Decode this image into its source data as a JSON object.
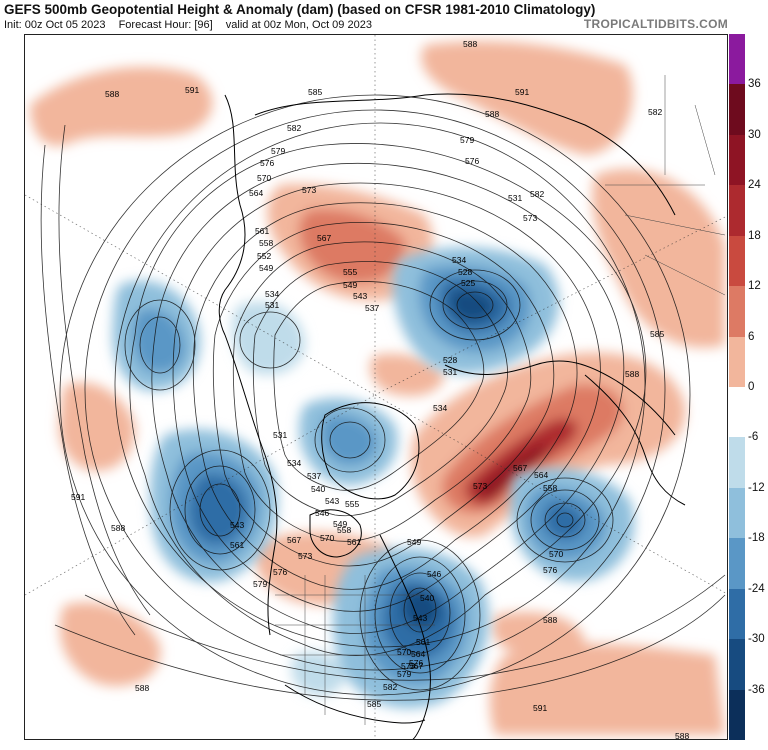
{
  "header": {
    "title": "GEFS 500mb Geopotential Height & Anomaly (dam) (based on CFSR 1981-2010 Climatology)",
    "init": "Init: 00z Oct 05 2023",
    "forecast_hour": "Forecast Hour: [96]",
    "valid": "valid at 00z Mon, Oct 09 2023",
    "site": "TROPICALTIDBITS.COM"
  },
  "colorbar": {
    "labels": [
      "36",
      "30",
      "24",
      "18",
      "12",
      "6",
      "0",
      "-6",
      "-12",
      "-18",
      "-24",
      "-30",
      "-36"
    ],
    "colors": [
      "#8b1a9e",
      "#6e0b1e",
      "#8e1424",
      "#ad2a2f",
      "#c94a3f",
      "#dd7a64",
      "#f2b69c",
      "#ffffff",
      "#bfdcea",
      "#8fbfdc",
      "#5a97c6",
      "#2f6da6",
      "#174b80",
      "#0c2f5a"
    ]
  },
  "map": {
    "contour_labels": [
      {
        "text": "588",
        "id": "c588-nw"
      },
      {
        "text": "591",
        "id": "c591-nw"
      },
      {
        "text": "588",
        "id": "c588-n"
      },
      {
        "text": "591",
        "id": "c591-ne"
      },
      {
        "text": "588",
        "id": "c588-ne"
      },
      {
        "text": "582",
        "id": "c582-ne"
      },
      {
        "text": "585",
        "id": "c585-n"
      },
      {
        "text": "582",
        "id": "c582-n"
      },
      {
        "text": "579",
        "id": "c579-n"
      },
      {
        "text": "576",
        "id": "c576-n"
      },
      {
        "text": "579",
        "id": "c579-ne"
      },
      {
        "text": "576",
        "id": "c576-ne"
      },
      {
        "text": "570",
        "id": "c570-n"
      },
      {
        "text": "564",
        "id": "c564-n"
      },
      {
        "text": "573",
        "id": "c573-n"
      },
      {
        "text": "567",
        "id": "c567-n"
      },
      {
        "text": "561",
        "id": "c561-w"
      },
      {
        "text": "558",
        "id": "c558-w"
      },
      {
        "text": "552",
        "id": "c552-w"
      },
      {
        "text": "549",
        "id": "c549-w"
      },
      {
        "text": "555",
        "id": "c555-c"
      },
      {
        "text": "549",
        "id": "c549-c"
      },
      {
        "text": "543",
        "id": "c543-c"
      },
      {
        "text": "537",
        "id": "c537-c"
      },
      {
        "text": "534",
        "id": "c534-w"
      },
      {
        "text": "531",
        "id": "c531-w"
      },
      {
        "text": "534",
        "id": "c534-e"
      },
      {
        "text": "528",
        "id": "c528-e"
      },
      {
        "text": "525",
        "id": "c525-e"
      },
      {
        "text": "531",
        "id": "c531-e"
      },
      {
        "text": "528",
        "id": "c528-c"
      },
      {
        "text": "531",
        "id": "c531-c"
      },
      {
        "text": "582",
        "id": "c582-ene"
      },
      {
        "text": "573",
        "id": "c573-ene"
      },
      {
        "text": "585",
        "id": "c585-e"
      },
      {
        "text": "588",
        "id": "c588-e"
      },
      {
        "text": "534",
        "id": "c534-c2"
      },
      {
        "text": "531",
        "id": "c531-c2"
      },
      {
        "text": "534",
        "id": "c534-sw"
      },
      {
        "text": "537",
        "id": "c537-sw"
      },
      {
        "text": "540",
        "id": "c540-sw"
      },
      {
        "text": "543",
        "id": "c543-sw"
      },
      {
        "text": "546",
        "id": "c546-sw"
      },
      {
        "text": "549",
        "id": "c549-sw"
      },
      {
        "text": "555",
        "id": "c555-sw"
      },
      {
        "text": "558",
        "id": "c558-sw"
      },
      {
        "text": "561",
        "id": "c561-sw"
      },
      {
        "text": "543",
        "id": "c543-w"
      },
      {
        "text": "561",
        "id": "c561-w2"
      },
      {
        "text": "567",
        "id": "c567-sw"
      },
      {
        "text": "570",
        "id": "c570-sw"
      },
      {
        "text": "573",
        "id": "c573-sw"
      },
      {
        "text": "576",
        "id": "c576-sw"
      },
      {
        "text": "579",
        "id": "c579-sw"
      },
      {
        "text": "591",
        "id": "c591-w"
      },
      {
        "text": "588",
        "id": "c588-w"
      },
      {
        "text": "567",
        "id": "c567-e"
      },
      {
        "text": "564",
        "id": "c564-e"
      },
      {
        "text": "558",
        "id": "c558-e"
      },
      {
        "text": "573",
        "id": "c573-e"
      },
      {
        "text": "570",
        "id": "c570-e"
      },
      {
        "text": "576",
        "id": "c576-e"
      },
      {
        "text": "549",
        "id": "c549-se"
      },
      {
        "text": "546",
        "id": "c546-se"
      },
      {
        "text": "540",
        "id": "c540-se"
      },
      {
        "text": "543",
        "id": "c543-se"
      },
      {
        "text": "561",
        "id": "c561-se"
      },
      {
        "text": "564",
        "id": "c564-se"
      },
      {
        "text": "567",
        "id": "c567-se"
      },
      {
        "text": "570",
        "id": "c570-se"
      },
      {
        "text": "573",
        "id": "c573-se"
      },
      {
        "text": "576",
        "id": "c576-se"
      },
      {
        "text": "579",
        "id": "c579-se"
      },
      {
        "text": "582",
        "id": "c582-se"
      },
      {
        "text": "585",
        "id": "c585-s"
      },
      {
        "text": "588",
        "id": "c588-s"
      },
      {
        "text": "588",
        "id": "c588-sw2"
      },
      {
        "text": "591",
        "id": "c591-s"
      },
      {
        "text": "588",
        "id": "c588-se2"
      }
    ]
  }
}
